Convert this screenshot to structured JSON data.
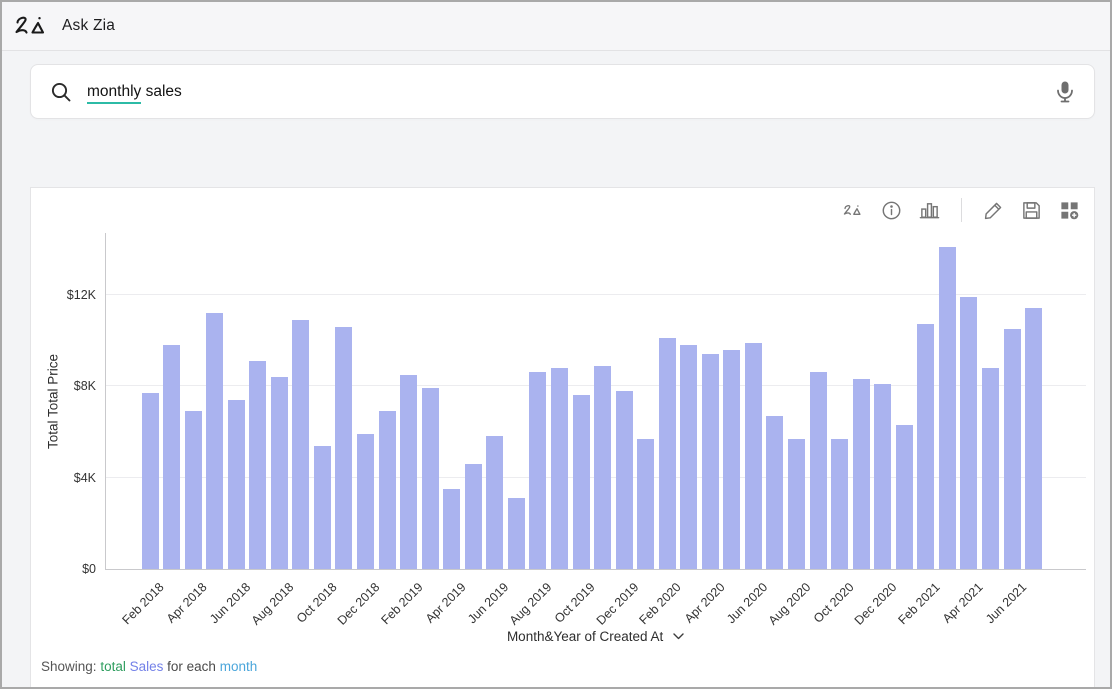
{
  "header": {
    "title": "Ask Zia"
  },
  "search": {
    "query": "monthly sales",
    "query_underlined": "monthly",
    "query_rest": " sales"
  },
  "toolbar": {
    "icons": [
      "zia-insights-icon",
      "info-icon",
      "chart-type-icon",
      "edit-icon",
      "save-icon",
      "add-to-dashboard-icon"
    ]
  },
  "chart_data": {
    "type": "bar",
    "title": "",
    "ylabel": "Total Total Price",
    "xlabel": "Month&Year of Created At",
    "categories": [
      "Feb 2018",
      "Mar 2018",
      "Apr 2018",
      "May 2018",
      "Jun 2018",
      "Jul 2018",
      "Aug 2018",
      "Sep 2018",
      "Oct 2018",
      "Nov 2018",
      "Dec 2018",
      "Jan 2019",
      "Feb 2019",
      "Mar 2019",
      "Apr 2019",
      "May 2019",
      "Jun 2019",
      "Jul 2019",
      "Aug 2019",
      "Sep 2019",
      "Oct 2019",
      "Nov 2019",
      "Dec 2019",
      "Jan 2020",
      "Feb 2020",
      "Mar 2020",
      "Apr 2020",
      "May 2020",
      "Jun 2020",
      "Jul 2020",
      "Aug 2020",
      "Sep 2020",
      "Oct 2020",
      "Nov 2020",
      "Dec 2020",
      "Jan 2021",
      "Feb 2021",
      "Mar 2021",
      "Apr 2021",
      "May 2021",
      "Jun 2021",
      "Jul 2021"
    ],
    "values": [
      7700,
      9800,
      6900,
      11200,
      7400,
      9100,
      8400,
      10900,
      5400,
      10600,
      5900,
      6900,
      8500,
      7900,
      3500,
      4600,
      5800,
      3100,
      8600,
      8800,
      7600,
      8900,
      7800,
      5700,
      10100,
      9800,
      9400,
      9600,
      9900,
      6700,
      5700,
      8600,
      5700,
      8300,
      8100,
      6300,
      10700,
      14100,
      11900,
      8800,
      10500,
      11400
    ],
    "ylim": [
      0,
      14700
    ],
    "yticks": {
      "labels": [
        "$0",
        "$4K",
        "$8K",
        "$12K"
      ],
      "values": [
        0,
        4000,
        8000,
        12000
      ]
    },
    "x_tick_every": 2,
    "grid": "horizontal",
    "legend": "none",
    "bar_color": "#aab3ef"
  },
  "footer": {
    "showing_label": "Showing:",
    "measure": "total",
    "field": "Sales",
    "connector": "for each",
    "dimension": "month"
  },
  "colors": {
    "accent_teal": "#2cbba6",
    "bar": "#aab3ef",
    "measure_green": "#2f9e5f",
    "field_blue": "#7381e8",
    "dimension_blue": "#4ba6db"
  }
}
